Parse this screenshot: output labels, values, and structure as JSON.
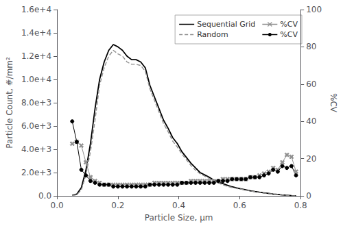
{
  "chart_data": {
    "type": "line",
    "xlabel": "Particle Size, μm",
    "ylabel": "Particle Count, #/mm²",
    "y2label": "%CV",
    "xlim": [
      0.0,
      0.8
    ],
    "xticks": [
      {
        "value": 0.0,
        "label": "0.0"
      },
      0.2,
      0.4,
      0.6,
      0.8
    ],
    "ylim": [
      0,
      16000
    ],
    "yticks": [
      {
        "value": 0,
        "label": "0.0"
      },
      {
        "value": 2000,
        "label": "2.0e+3"
      },
      {
        "value": 4000,
        "label": "4.0e+3"
      },
      {
        "value": 6000,
        "label": "6.0e+3"
      },
      {
        "value": 8000,
        "label": "8.0e+3"
      },
      {
        "value": 10000,
        "label": "1.0e+4"
      },
      {
        "value": 12000,
        "label": "1.2e+4"
      },
      {
        "value": 14000,
        "label": "1.4e+4"
      },
      {
        "value": 16000,
        "label": "1.6e+4"
      }
    ],
    "y2lim": [
      0,
      100
    ],
    "y2ticks": [
      0,
      20,
      40,
      60,
      80,
      100
    ],
    "grid": false,
    "legend": "upper right",
    "x": [
      0.05,
      0.065,
      0.08,
      0.095,
      0.11,
      0.125,
      0.14,
      0.155,
      0.17,
      0.185,
      0.2,
      0.215,
      0.23,
      0.245,
      0.26,
      0.275,
      0.29,
      0.305,
      0.32,
      0.335,
      0.35,
      0.365,
      0.38,
      0.395,
      0.41,
      0.425,
      0.44,
      0.455,
      0.47,
      0.485,
      0.5,
      0.515,
      0.53,
      0.545,
      0.56,
      0.575,
      0.59,
      0.605,
      0.62,
      0.635,
      0.65,
      0.665,
      0.68,
      0.695,
      0.71,
      0.725,
      0.74,
      0.755,
      0.77,
      0.785
    ],
    "series": [
      {
        "name": "Sequential Grid",
        "color": "#000000",
        "line_style": "solid",
        "values": [
          50,
          150,
          700,
          2200,
          4500,
          7500,
          10000,
          11500,
          12500,
          13000,
          12800,
          12500,
          12000,
          11700,
          11700,
          11500,
          11000,
          9500,
          8500,
          7500,
          6500,
          5800,
          5000,
          4500,
          3800,
          3300,
          2800,
          2400,
          2000,
          1800,
          1600,
          1350,
          1200,
          1050,
          900,
          780,
          680,
          600,
          520,
          440,
          370,
          310,
          260,
          210,
          160,
          120,
          80,
          50,
          20,
          5
        ]
      },
      {
        "name": "Random",
        "color": "#909090",
        "line_style": "dashed",
        "values": [
          30,
          100,
          500,
          1800,
          3800,
          6500,
          9500,
          11000,
          12000,
          12500,
          12200,
          12000,
          11500,
          11300,
          11300,
          11200,
          10700,
          9200,
          8200,
          7200,
          6200,
          5500,
          4700,
          4200,
          3600,
          3100,
          2600,
          2200,
          1900,
          1700,
          1500,
          1250,
          1100,
          950,
          820,
          720,
          640,
          570,
          490,
          420,
          350,
          290,
          240,
          190,
          150,
          110,
          75,
          45,
          20,
          5
        ]
      },
      {
        "name": "%CV",
        "color": "#909090",
        "line_style": "solid",
        "marker": "x",
        "axis": "y2",
        "values": [
          28,
          29,
          27,
          18,
          10,
          8,
          7,
          6,
          6,
          6,
          6,
          6,
          6,
          6,
          6,
          6,
          6,
          6,
          7,
          7,
          7,
          7,
          7,
          7,
          7,
          7,
          8,
          8,
          8,
          8,
          8,
          8,
          8,
          9,
          9,
          9,
          9,
          9,
          9,
          10,
          10,
          11,
          12,
          13,
          15,
          14,
          18,
          22,
          21,
          13
        ]
      },
      {
        "name": "%CV",
        "color": "#000000",
        "line_style": "solid",
        "marker": "circle",
        "axis": "y2",
        "values": [
          40,
          29,
          14,
          11,
          8,
          7,
          6,
          6,
          6,
          5,
          5,
          5,
          5,
          5,
          5,
          5,
          5,
          6,
          6,
          6,
          6,
          6,
          6,
          6,
          7,
          7,
          7,
          7,
          7,
          7,
          7,
          7,
          8,
          8,
          8,
          9,
          9,
          9,
          9,
          10,
          10,
          10,
          11,
          12,
          14,
          13,
          16,
          15,
          16,
          11
        ]
      }
    ]
  }
}
